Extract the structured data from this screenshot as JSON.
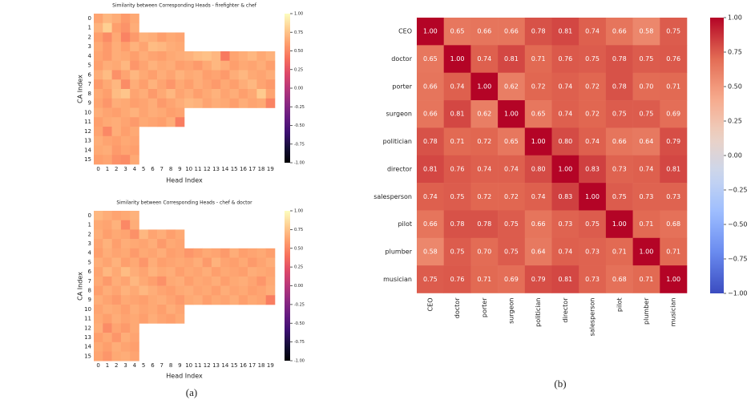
{
  "chart_data": [
    {
      "type": "heatmap",
      "title": "Similarity between Corresponding Heads - firefighter & chef",
      "xlabel": "Head Index",
      "ylabel": "CA Index",
      "colormap": "magma",
      "x": [
        0,
        1,
        2,
        3,
        4,
        5,
        6,
        7,
        8,
        9,
        10,
        11,
        12,
        13,
        14,
        15,
        16,
        17,
        18,
        19
      ],
      "y": [
        0,
        1,
        2,
        3,
        4,
        5,
        6,
        7,
        8,
        9,
        10,
        11,
        12,
        13,
        14,
        15
      ],
      "values": [
        [
          0.62,
          0.7,
          0.66,
          0.58,
          0.64
        ],
        [
          0.68,
          0.8,
          0.6,
          0.55,
          0.66
        ],
        [
          0.6,
          0.52,
          0.64,
          0.48,
          0.58,
          0.68,
          0.66,
          0.6,
          0.64,
          0.62
        ],
        [
          0.64,
          0.58,
          0.66,
          0.6,
          0.68,
          0.62,
          0.72,
          0.7,
          0.66,
          0.64
        ],
        [
          0.62,
          0.58,
          0.66,
          0.64,
          0.6,
          0.66,
          0.62,
          0.6,
          0.64,
          0.66,
          0.68,
          0.72,
          0.74,
          0.7,
          0.44,
          0.62,
          0.66,
          0.7,
          0.64,
          0.68
        ],
        [
          0.6,
          0.66,
          0.64,
          0.7,
          0.56,
          0.62,
          0.68,
          0.64,
          0.66,
          0.6,
          0.62,
          0.58,
          0.64,
          0.7,
          0.66,
          0.6,
          0.64,
          0.62,
          0.66,
          0.6
        ],
        [
          0.66,
          0.72,
          0.54,
          0.62,
          0.7,
          0.64,
          0.6,
          0.66,
          0.62,
          0.68,
          0.64,
          0.66,
          0.6,
          0.62,
          0.58,
          0.66,
          0.7,
          0.64,
          0.62,
          0.66
        ],
        [
          0.58,
          0.64,
          0.7,
          0.52,
          0.66,
          0.6,
          0.68,
          0.62,
          0.56,
          0.64,
          0.6,
          0.66,
          0.62,
          0.58,
          0.64,
          0.6,
          0.66,
          0.7,
          0.62,
          0.58
        ],
        [
          0.64,
          0.6,
          0.72,
          0.76,
          0.62,
          0.66,
          0.58,
          0.64,
          0.7,
          0.62,
          0.66,
          0.6,
          0.64,
          0.68,
          0.62,
          0.66,
          0.6,
          0.64,
          0.78,
          0.62
        ],
        [
          0.62,
          0.56,
          0.66,
          0.64,
          0.6,
          0.62,
          0.66,
          0.58,
          0.62,
          0.66,
          0.7,
          0.68,
          0.62,
          0.66,
          0.64,
          0.6,
          0.66,
          0.62,
          0.64,
          0.48
        ],
        [
          0.66,
          0.62,
          0.6,
          0.64,
          0.68,
          0.62,
          0.66,
          0.64,
          0.6,
          0.62
        ],
        [
          0.6,
          0.64,
          0.66,
          0.62,
          0.58,
          0.64,
          0.62,
          0.6,
          0.66,
          0.46
        ],
        [
          0.62,
          0.5,
          0.66,
          0.6,
          0.64
        ],
        [
          0.66,
          0.62,
          0.6,
          0.64,
          0.62
        ],
        [
          0.64,
          0.66,
          0.58,
          0.62,
          0.6
        ],
        [
          0.6,
          0.62,
          0.54,
          0.52,
          0.64
        ]
      ],
      "zlim": [
        -1,
        1
      ],
      "zticks": [
        {
          "value": 1,
          "label": "1.00"
        },
        {
          "value": 0.75,
          "label": "0.75"
        },
        {
          "value": 0.5,
          "label": "0.50"
        },
        {
          "value": 0.25,
          "label": "0.25"
        },
        {
          "value": 0,
          "label": "0.00"
        },
        {
          "value": -0.25,
          "label": "-0.25"
        },
        {
          "value": -0.5,
          "label": "-0.50"
        },
        {
          "value": -0.75,
          "label": "-0.75"
        },
        {
          "value": -1,
          "label": "-1.00"
        }
      ]
    },
    {
      "type": "heatmap",
      "title": "Similarity between Corresponding Heads - chef & doctor",
      "xlabel": "Head Index",
      "ylabel": "CA Index",
      "colormap": "magma",
      "x": [
        0,
        1,
        2,
        3,
        4,
        5,
        6,
        7,
        8,
        9,
        10,
        11,
        12,
        13,
        14,
        15,
        16,
        17,
        18,
        19
      ],
      "y": [
        0,
        1,
        2,
        3,
        4,
        5,
        6,
        7,
        8,
        9,
        10,
        11,
        12,
        13,
        14,
        15
      ],
      "values": [
        [
          0.7,
          0.66,
          0.62,
          0.64,
          0.68
        ],
        [
          0.64,
          0.62,
          0.68,
          0.5,
          0.66
        ],
        [
          0.66,
          0.6,
          0.64,
          0.62,
          0.54,
          0.7,
          0.62,
          0.66,
          0.6,
          0.64
        ],
        [
          0.62,
          0.68,
          0.6,
          0.66,
          0.64,
          0.62,
          0.66,
          0.58,
          0.64,
          0.62
        ],
        [
          0.6,
          0.66,
          0.62,
          0.64,
          0.58,
          0.64,
          0.62,
          0.66,
          0.6,
          0.62,
          0.56,
          0.6,
          0.64,
          0.62,
          0.58,
          0.66,
          0.6,
          0.62,
          0.64,
          0.6
        ],
        [
          0.66,
          0.62,
          0.68,
          0.6,
          0.64,
          0.56,
          0.66,
          0.6,
          0.62,
          0.64,
          0.62,
          0.66,
          0.58,
          0.68,
          0.62,
          0.6,
          0.64,
          0.58,
          0.62,
          0.66
        ],
        [
          0.62,
          0.7,
          0.64,
          0.72,
          0.66,
          0.62,
          0.68,
          0.64,
          0.66,
          0.6,
          0.64,
          0.62,
          0.66,
          0.6,
          0.64,
          0.62,
          0.6,
          0.66,
          0.64,
          0.62
        ],
        [
          0.64,
          0.58,
          0.66,
          0.62,
          0.7,
          0.64,
          0.6,
          0.54,
          0.64,
          0.66,
          0.6,
          0.64,
          0.62,
          0.66,
          0.6,
          0.64,
          0.66,
          0.62,
          0.56,
          0.64
        ],
        [
          0.6,
          0.66,
          0.62,
          0.68,
          0.64,
          0.7,
          0.66,
          0.62,
          0.6,
          0.64,
          0.66,
          0.62,
          0.64,
          0.6,
          0.66,
          0.62,
          0.64,
          0.6,
          0.62,
          0.66
        ],
        [
          0.66,
          0.62,
          0.58,
          0.64,
          0.62,
          0.6,
          0.64,
          0.66,
          0.62,
          0.58,
          0.64,
          0.66,
          0.6,
          0.64,
          0.62,
          0.66,
          0.6,
          0.64,
          0.62,
          0.46
        ],
        [
          0.62,
          0.66,
          0.64,
          0.6,
          0.66,
          0.62,
          0.64,
          0.6,
          0.66,
          0.62
        ],
        [
          0.64,
          0.6,
          0.66,
          0.62,
          0.64,
          0.6,
          0.66,
          0.62,
          0.6,
          0.64
        ],
        [
          0.66,
          0.52,
          0.62,
          0.58,
          0.64
        ],
        [
          0.6,
          0.64,
          0.56,
          0.66,
          0.62
        ],
        [
          0.64,
          0.6,
          0.66,
          0.62,
          0.6
        ],
        [
          0.62,
          0.56,
          0.64,
          0.66,
          0.62
        ]
      ],
      "zlim": [
        -1,
        1
      ],
      "zticks": [
        {
          "value": 1,
          "label": "1.00"
        },
        {
          "value": 0.75,
          "label": "0.75"
        },
        {
          "value": 0.5,
          "label": "0.50"
        },
        {
          "value": 0.25,
          "label": "0.25"
        },
        {
          "value": 0,
          "label": "0.00"
        },
        {
          "value": -0.25,
          "label": "-0.25"
        },
        {
          "value": -0.5,
          "label": "-0.50"
        },
        {
          "value": -0.75,
          "label": "-0.75"
        },
        {
          "value": -1,
          "label": "-1.00"
        }
      ]
    },
    {
      "type": "heatmap",
      "colormap": "coolwarm",
      "x": [
        "CEO",
        "doctor",
        "porter",
        "surgeon",
        "politician",
        "director",
        "salesperson",
        "pilot",
        "plumber",
        "musician"
      ],
      "y": [
        "CEO",
        "doctor",
        "porter",
        "surgeon",
        "politician",
        "director",
        "salesperson",
        "pilot",
        "plumber",
        "musician"
      ],
      "values": [
        [
          1,
          0.65,
          0.66,
          0.66,
          0.78,
          0.81,
          0.74,
          0.66,
          0.58,
          0.75
        ],
        [
          0.65,
          1,
          0.74,
          0.81,
          0.71,
          0.76,
          0.75,
          0.78,
          0.75,
          0.76
        ],
        [
          0.66,
          0.74,
          1,
          0.62,
          0.72,
          0.74,
          0.72,
          0.78,
          0.7,
          0.71
        ],
        [
          0.66,
          0.81,
          0.62,
          1,
          0.65,
          0.74,
          0.72,
          0.75,
          0.75,
          0.69
        ],
        [
          0.78,
          0.71,
          0.72,
          0.65,
          1,
          0.8,
          0.74,
          0.66,
          0.64,
          0.79
        ],
        [
          0.81,
          0.76,
          0.74,
          0.74,
          0.8,
          1,
          0.83,
          0.73,
          0.74,
          0.81
        ],
        [
          0.74,
          0.75,
          0.72,
          0.72,
          0.74,
          0.83,
          1,
          0.75,
          0.73,
          0.73
        ],
        [
          0.66,
          0.78,
          0.78,
          0.75,
          0.66,
          0.73,
          0.75,
          1,
          0.71,
          0.68
        ],
        [
          0.58,
          0.75,
          0.7,
          0.75,
          0.64,
          0.74,
          0.73,
          0.71,
          1,
          0.71
        ],
        [
          0.75,
          0.76,
          0.71,
          0.69,
          0.79,
          0.81,
          0.73,
          0.68,
          0.71,
          1
        ]
      ],
      "value_labels": [
        [
          "1.00",
          "0.65",
          "0.66",
          "0.66",
          "0.78",
          "0.81",
          "0.74",
          "0.66",
          "0.58",
          "0.75"
        ],
        [
          "0.65",
          "1.00",
          "0.74",
          "0.81",
          "0.71",
          "0.76",
          "0.75",
          "0.78",
          "0.75",
          "0.76"
        ],
        [
          "0.66",
          "0.74",
          "1.00",
          "0.62",
          "0.72",
          "0.74",
          "0.72",
          "0.78",
          "0.70",
          "0.71"
        ],
        [
          "0.66",
          "0.81",
          "0.62",
          "1.00",
          "0.65",
          "0.74",
          "0.72",
          "0.75",
          "0.75",
          "0.69"
        ],
        [
          "0.78",
          "0.71",
          "0.72",
          "0.65",
          "1.00",
          "0.80",
          "0.74",
          "0.66",
          "0.64",
          "0.79"
        ],
        [
          "0.81",
          "0.76",
          "0.74",
          "0.74",
          "0.80",
          "1.00",
          "0.83",
          "0.73",
          "0.74",
          "0.81"
        ],
        [
          "0.74",
          "0.75",
          "0.72",
          "0.72",
          "0.74",
          "0.83",
          "1.00",
          "0.75",
          "0.73",
          "0.73"
        ],
        [
          "0.66",
          "0.78",
          "0.78",
          "0.75",
          "0.66",
          "0.73",
          "0.75",
          "1.00",
          "0.71",
          "0.68"
        ],
        [
          "0.58",
          "0.75",
          "0.70",
          "0.75",
          "0.64",
          "0.74",
          "0.73",
          "0.71",
          "1.00",
          "0.71"
        ],
        [
          "0.75",
          "0.76",
          "0.71",
          "0.69",
          "0.79",
          "0.81",
          "0.73",
          "0.68",
          "0.71",
          "1.00"
        ]
      ],
      "zlim": [
        -1,
        1
      ],
      "zticks": [
        {
          "value": 1,
          "label": "1.00"
        },
        {
          "value": 0.75,
          "label": "0.75"
        },
        {
          "value": 0.5,
          "label": "0.50"
        },
        {
          "value": 0.25,
          "label": "0.25"
        },
        {
          "value": 0,
          "label": "0.00"
        },
        {
          "value": -0.25,
          "label": "−0.25"
        },
        {
          "value": -0.5,
          "label": "−0.50"
        },
        {
          "value": -0.75,
          "label": "−0.75"
        },
        {
          "value": -1,
          "label": "−1.00"
        }
      ]
    }
  ],
  "captions": [
    "(a)",
    "(b)"
  ]
}
